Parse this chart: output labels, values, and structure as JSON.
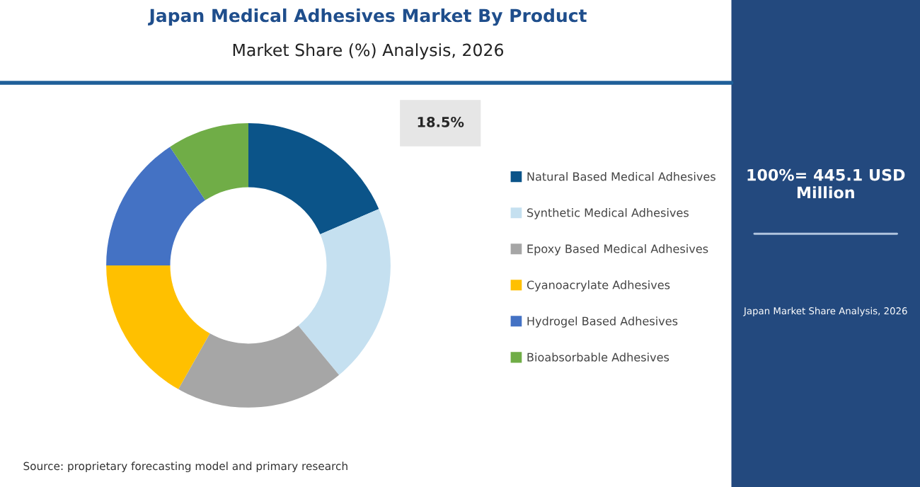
{
  "chart_data": {
    "type": "donut",
    "title": "Japan Medical Adhesives Market By Product",
    "subtitle": "Market Share (%) Analysis, 2026",
    "categories": [
      "Natural Based Medical Adhesives",
      "Synthetic Medical Adhesives",
      "Epoxy Based Medical Adhesives",
      "Cyanoacrylate Adhesives",
      "Hydrogel Based Adhesives",
      "Bioabsorbable Adhesives"
    ],
    "values": [
      18.5,
      20.5,
      19.2,
      16.8,
      15.7,
      9.3
    ],
    "colors": [
      "#0b5489",
      "#c5e0f0",
      "#a6a6a6",
      "#ffc000",
      "#4472c4",
      "#70ad47"
    ],
    "value_labels": [
      "18.5%",
      null,
      null,
      null,
      null,
      null
    ],
    "legend": "right",
    "annotations": [
      "Source: proprietary forecasting model and primary research",
      "100%= 445.1 USD Million",
      "Japan Market Share Analysis, 2026"
    ]
  }
}
